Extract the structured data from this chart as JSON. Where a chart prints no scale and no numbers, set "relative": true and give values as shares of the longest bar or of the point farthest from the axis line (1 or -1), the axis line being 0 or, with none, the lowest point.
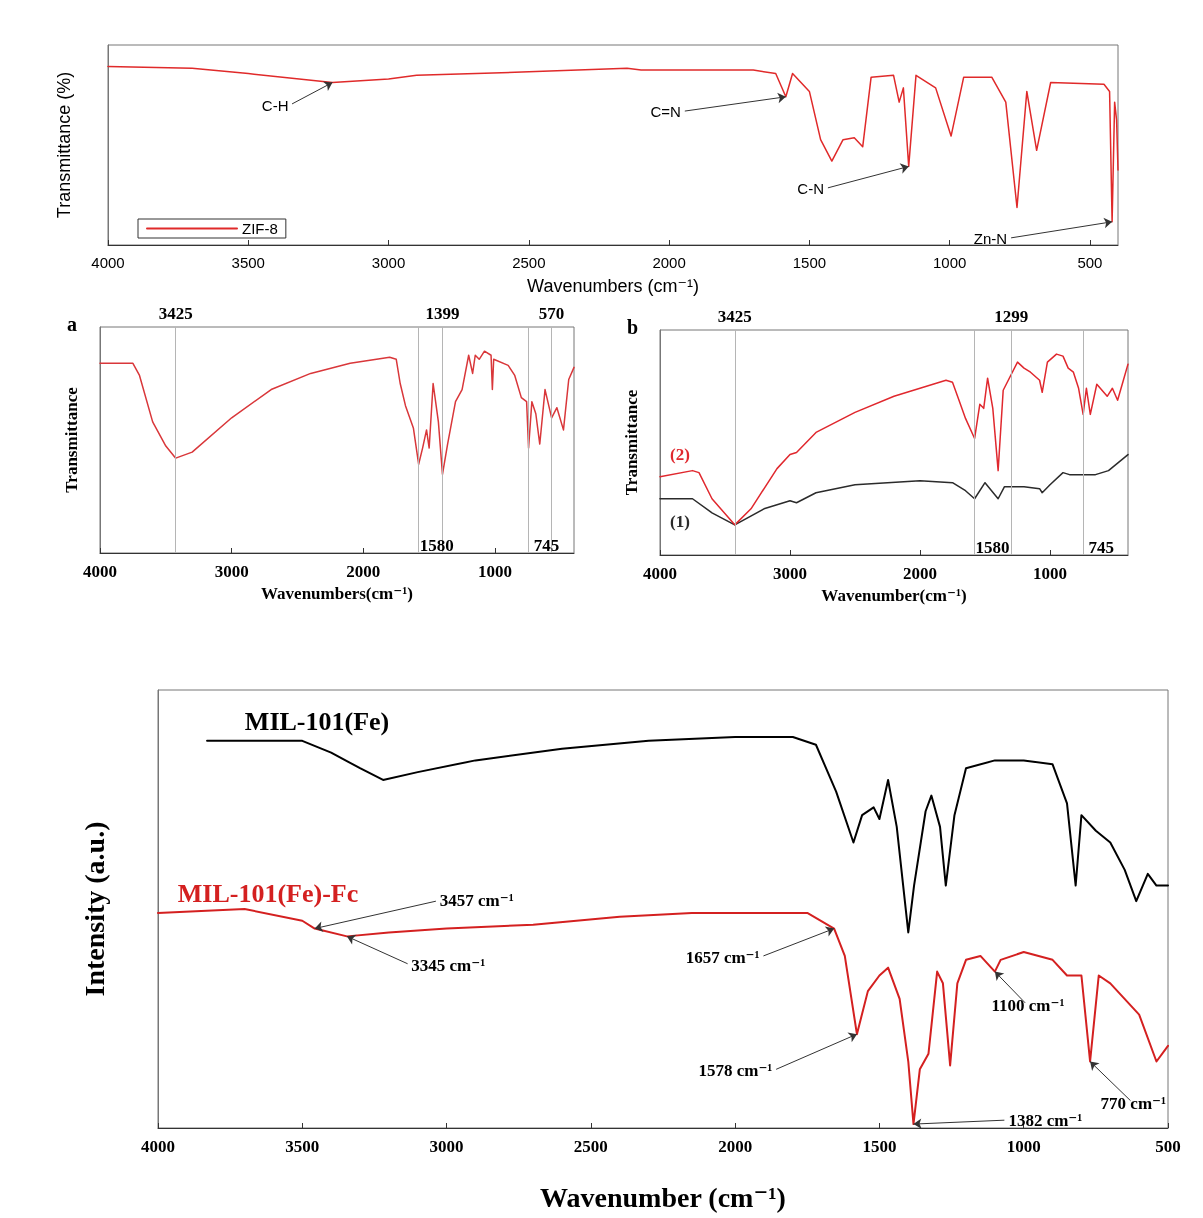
{
  "chart_data": [
    {
      "type": "line",
      "xlabel": "Wavenumbers (cm⁻¹)",
      "ylabel": "Transmittance (%)",
      "relative": true,
      "xlim": [
        4000,
        400
      ],
      "xticks": [
        4000,
        3500,
        3000,
        2500,
        2000,
        1500,
        1000,
        500
      ],
      "grid": false,
      "legend": "bottom left",
      "marker": "none",
      "line_style": "solid",
      "series": [
        {
          "name": "ZIF-8",
          "color": "#e02a2a",
          "x": [
            4000,
            3700,
            3500,
            3200,
            3000,
            2900,
            2500,
            2150,
            2100,
            2000,
            1700,
            1620,
            1584,
            1560,
            1500,
            1460,
            1420,
            1380,
            1340,
            1310,
            1280,
            1200,
            1180,
            1165,
            1146,
            1120,
            1050,
            995,
            950,
            850,
            800,
            760,
            725,
            690,
            640,
            450,
            430,
            421,
            412,
            405,
            400
          ],
          "values": [
            1.0,
            0.99,
            0.96,
            0.91,
            0.93,
            0.95,
            0.97,
            0.99,
            0.98,
            0.98,
            0.98,
            0.96,
            0.83,
            0.96,
            0.86,
            0.59,
            0.47,
            0.59,
            0.6,
            0.55,
            0.94,
            0.95,
            0.8,
            0.88,
            0.44,
            0.95,
            0.88,
            0.61,
            0.94,
            0.94,
            0.8,
            0.21,
            0.86,
            0.53,
            0.91,
            0.9,
            0.86,
            0.13,
            0.8,
            0.7,
            0.42
          ]
        }
      ],
      "annotations": [
        {
          "text": "C-H",
          "x": 3200,
          "y": 0.91
        },
        {
          "text": "C=N",
          "x": 1584,
          "y": 0.83
        },
        {
          "text": "C-N",
          "x": 1146,
          "y": 0.44
        },
        {
          "text": "Zn-N",
          "x": 421,
          "y": 0.13
        }
      ]
    },
    {
      "type": "line",
      "title": "a",
      "xlabel": "Wavenumbers(cm⁻¹)",
      "ylabel": "Transmittance",
      "relative": true,
      "xlim": [
        4000,
        400
      ],
      "xticks": [
        4000,
        3000,
        2000,
        1000
      ],
      "grid": false,
      "legend": false,
      "marker": "none",
      "series": [
        {
          "color": "#d9373a",
          "x": [
            4000,
            3750,
            3700,
            3600,
            3500,
            3425,
            3300,
            3000,
            2700,
            2400,
            2100,
            1800,
            1750,
            1720,
            1680,
            1620,
            1580,
            1550,
            1520,
            1500,
            1470,
            1430,
            1399,
            1360,
            1300,
            1250,
            1200,
            1170,
            1150,
            1120,
            1080,
            1030,
            1020,
            1010,
            900,
            850,
            800,
            760,
            745,
            720,
            690,
            660,
            620,
            570,
            530,
            480,
            440,
            400
          ],
          "values": [
            0.94,
            0.94,
            0.88,
            0.65,
            0.53,
            0.47,
            0.5,
            0.67,
            0.81,
            0.89,
            0.94,
            0.97,
            0.96,
            0.84,
            0.73,
            0.62,
            0.44,
            0.52,
            0.61,
            0.52,
            0.84,
            0.65,
            0.39,
            0.54,
            0.75,
            0.81,
            0.98,
            0.89,
            0.98,
            0.96,
            1.0,
            0.98,
            0.81,
            0.96,
            0.93,
            0.88,
            0.77,
            0.75,
            0.52,
            0.75,
            0.69,
            0.54,
            0.81,
            0.67,
            0.72,
            0.61,
            0.86,
            0.92
          ]
        }
      ],
      "ref_lines": [
        {
          "axis": "x",
          "value": 3425,
          "label": "3425",
          "color": "#b5b5b5"
        },
        {
          "axis": "x",
          "value": 1580,
          "label": "1580",
          "color": "#b5b5b5"
        },
        {
          "axis": "x",
          "value": 1399,
          "label": "1399",
          "color": "#b5b5b5"
        },
        {
          "axis": "x",
          "value": 745,
          "label": "745",
          "color": "#b5b5b5"
        },
        {
          "axis": "x",
          "value": 570,
          "label": "570",
          "color": "#b5b5b5"
        }
      ]
    },
    {
      "type": "line",
      "title": "b",
      "xlabel": "Wavenumber(cm⁻¹)",
      "ylabel": "Transmittance",
      "relative": true,
      "xlim": [
        4000,
        400
      ],
      "xticks": [
        4000,
        3000,
        2000,
        1000
      ],
      "grid": false,
      "legend": false,
      "marker": "none",
      "series": [
        {
          "name": "(1)",
          "color": "#2b2b2b",
          "x": [
            4000,
            3750,
            3600,
            3425,
            3200,
            3000,
            2950,
            2800,
            2500,
            2000,
            1750,
            1650,
            1580,
            1500,
            1399,
            1350,
            1200,
            1080,
            1060,
            1000,
            900,
            850,
            750,
            650,
            550,
            400
          ],
          "values": [
            0.28,
            0.28,
            0.21,
            0.15,
            0.23,
            0.27,
            0.26,
            0.31,
            0.35,
            0.37,
            0.36,
            0.32,
            0.28,
            0.36,
            0.28,
            0.34,
            0.34,
            0.33,
            0.31,
            0.35,
            0.41,
            0.4,
            0.4,
            0.4,
            0.42,
            0.5
          ]
        },
        {
          "name": "(2)",
          "color": "#e0282e",
          "x": [
            4000,
            3750,
            3700,
            3600,
            3425,
            3300,
            3100,
            3000,
            2950,
            2800,
            2500,
            2200,
            1900,
            1800,
            1750,
            1700,
            1650,
            1580,
            1540,
            1510,
            1480,
            1440,
            1399,
            1360,
            1250,
            1200,
            1150,
            1080,
            1060,
            1020,
            950,
            900,
            860,
            820,
            780,
            745,
            720,
            690,
            640,
            560,
            520,
            480,
            440,
            400
          ],
          "values": [
            0.39,
            0.42,
            0.41,
            0.28,
            0.15,
            0.23,
            0.43,
            0.5,
            0.51,
            0.61,
            0.71,
            0.79,
            0.85,
            0.87,
            0.86,
            0.77,
            0.68,
            0.58,
            0.75,
            0.73,
            0.88,
            0.73,
            0.42,
            0.82,
            0.96,
            0.93,
            0.91,
            0.87,
            0.81,
            0.96,
            1.0,
            0.99,
            0.93,
            0.91,
            0.83,
            0.7,
            0.83,
            0.7,
            0.85,
            0.79,
            0.83,
            0.77,
            0.86,
            0.95
          ]
        }
      ],
      "ref_lines": [
        {
          "axis": "x",
          "value": 3425,
          "label": "3425",
          "color": "#b5b5b5"
        },
        {
          "axis": "x",
          "value": 1580,
          "label": "1580",
          "color": "#b5b5b5"
        },
        {
          "axis": "x",
          "value": 1299,
          "label": "1299",
          "color": "#b5b5b5"
        },
        {
          "axis": "x",
          "value": 745,
          "label": "745",
          "color": "#b5b5b5"
        }
      ]
    },
    {
      "type": "line",
      "xlabel": "Wavenumber (cm⁻¹)",
      "ylabel": "Intensity (a.u.)",
      "relative": true,
      "xlim": [
        4000,
        500
      ],
      "xticks": [
        4000,
        3500,
        3000,
        2500,
        2000,
        1500,
        1000,
        500
      ],
      "grid": false,
      "legend": false,
      "marker": "none",
      "series": [
        {
          "name": "MIL-101(Fe)",
          "color": "#000000",
          "x": [
            3830,
            3500,
            3400,
            3300,
            3220,
            3100,
            2900,
            2600,
            2300,
            2000,
            1800,
            1720,
            1650,
            1590,
            1560,
            1520,
            1500,
            1470,
            1440,
            1400,
            1380,
            1340,
            1320,
            1290,
            1270,
            1240,
            1200,
            1100,
            1000,
            900,
            850,
            820,
            800,
            750,
            700,
            650,
            610,
            570,
            540,
            500
          ],
          "values": [
            0.99,
            0.99,
            0.96,
            0.92,
            0.89,
            0.91,
            0.94,
            0.97,
            0.99,
            1.0,
            1.0,
            0.98,
            0.86,
            0.73,
            0.8,
            0.82,
            0.79,
            0.89,
            0.77,
            0.5,
            0.62,
            0.81,
            0.85,
            0.77,
            0.62,
            0.8,
            0.92,
            0.94,
            0.94,
            0.93,
            0.83,
            0.62,
            0.8,
            0.76,
            0.73,
            0.66,
            0.58,
            0.65,
            0.62,
            0.62
          ]
        },
        {
          "name": "MIL-101(Fe)-Fc",
          "color": "#d42020",
          "x": [
            4000,
            3700,
            3500,
            3457,
            3345,
            3200,
            3000,
            2700,
            2400,
            2150,
            2000,
            1750,
            1657,
            1620,
            1578,
            1540,
            1500,
            1470,
            1430,
            1400,
            1382,
            1360,
            1330,
            1300,
            1280,
            1255,
            1230,
            1200,
            1150,
            1100,
            1080,
            1000,
            900,
            850,
            800,
            770,
            740,
            700,
            600,
            540,
            500
          ],
          "values": [
            0.55,
            0.56,
            0.53,
            0.51,
            0.49,
            0.5,
            0.51,
            0.52,
            0.54,
            0.55,
            0.55,
            0.55,
            0.51,
            0.44,
            0.24,
            0.35,
            0.39,
            0.41,
            0.33,
            0.17,
            0.01,
            0.15,
            0.19,
            0.4,
            0.37,
            0.16,
            0.37,
            0.43,
            0.44,
            0.4,
            0.43,
            0.45,
            0.43,
            0.39,
            0.39,
            0.17,
            0.39,
            0.37,
            0.29,
            0.17,
            0.21
          ]
        }
      ],
      "annotations": [
        {
          "text": "3457 cm⁻¹",
          "x": 3457,
          "y": 0.51
        },
        {
          "text": "3345 cm⁻¹",
          "x": 3345,
          "y": 0.49
        },
        {
          "text": "1657 cm⁻¹",
          "x": 1657,
          "y": 0.51
        },
        {
          "text": "1578 cm⁻¹",
          "x": 1578,
          "y": 0.24
        },
        {
          "text": "1382 cm⁻¹",
          "x": 1382,
          "y": 0.01
        },
        {
          "text": "1100 cm⁻¹",
          "x": 1100,
          "y": 0.4
        },
        {
          "text": "770 cm⁻¹",
          "x": 770,
          "y": 0.17
        }
      ]
    }
  ]
}
